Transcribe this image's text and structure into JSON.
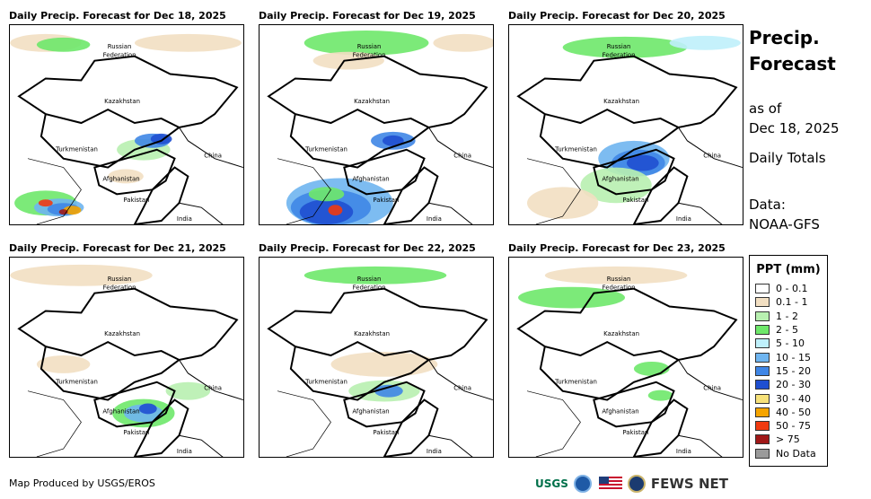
{
  "panels": [
    {
      "title": "Daily Precip. Forecast for Dec 18, 2025"
    },
    {
      "title": "Daily Precip. Forecast for Dec 19, 2025"
    },
    {
      "title": "Daily Precip. Forecast for Dec 20, 2025"
    },
    {
      "title": "Daily Precip. Forecast for Dec 21, 2025"
    },
    {
      "title": "Daily Precip. Forecast for Dec 22, 2025"
    },
    {
      "title": "Daily Precip. Forecast for Dec 23, 2025"
    }
  ],
  "map_labels": {
    "russia": "Russian",
    "federation": "Federation",
    "kazakhstan": "Kazakhstan",
    "turkmenistan": "Turkmenistan",
    "afghanistan": "Afghanistan",
    "pakistan": "Pakistan",
    "china": "China",
    "india": "India"
  },
  "side": {
    "title_line1": "Precip.",
    "title_line2": "Forecast",
    "asof_line1": "as of",
    "asof_line2": "Dec 18, 2025",
    "totals": "Daily Totals",
    "data_line1": "Data:",
    "data_line2": "NOAA-GFS"
  },
  "legend": {
    "title": "PPT (mm)",
    "items": [
      {
        "label": "0 - 0.1",
        "color": "#ffffff"
      },
      {
        "label": "0.1 - 1",
        "color": "#f2dfc2"
      },
      {
        "label": "1 - 2",
        "color": "#b8f0b0"
      },
      {
        "label": "2 - 5",
        "color": "#6ee86a"
      },
      {
        "label": "5 - 10",
        "color": "#bff0fb"
      },
      {
        "label": "10 - 15",
        "color": "#6fb5f0"
      },
      {
        "label": "15 - 20",
        "color": "#3f86e6"
      },
      {
        "label": "20 - 30",
        "color": "#1f4fd0"
      },
      {
        "label": "30 - 40",
        "color": "#f7e27a"
      },
      {
        "label": "40 - 50",
        "color": "#f5a400"
      },
      {
        "label": "50 - 75",
        "color": "#f03a10"
      },
      {
        "label": "> 75",
        "color": "#a01818"
      },
      {
        "label": "No Data",
        "color": "#9a9a9a"
      }
    ]
  },
  "footer": "Map Produced by USGS/EROS",
  "logos": {
    "usgs": "USGS",
    "fews": "FEWS NET"
  }
}
